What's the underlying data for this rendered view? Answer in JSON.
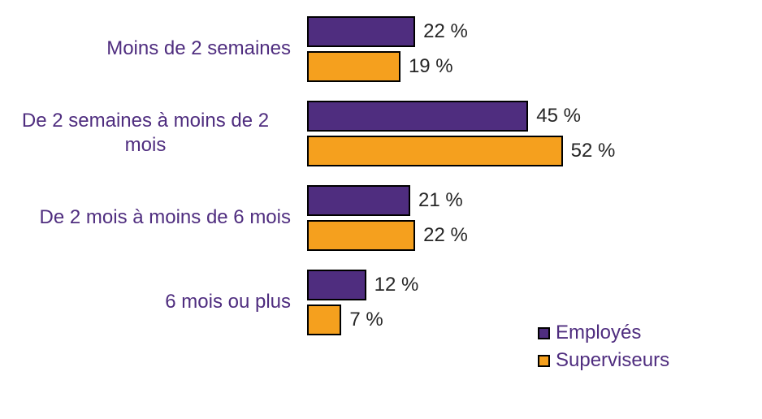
{
  "chart_data": {
    "type": "bar",
    "orientation": "horizontal",
    "title": "",
    "xlabel": "",
    "ylabel": "",
    "xlim": [
      0,
      60
    ],
    "grid": false,
    "legend_position": "bottom-right",
    "value_suffix": " %",
    "categories": [
      "Moins de 2 semaines",
      "De 2 semaines à moins de 2 mois",
      "De 2 mois à moins de 6 mois",
      "6 mois ou plus"
    ],
    "series": [
      {
        "name": "Employés",
        "color": "#4F2D7F",
        "values": [
          22,
          45,
          21,
          12
        ]
      },
      {
        "name": "Superviseurs",
        "color": "#F5A01E",
        "values": [
          19,
          52,
          22,
          7
        ]
      }
    ],
    "colors": {
      "category_label": "#4F2D7F",
      "value_label": "#262626",
      "bar_border": "#000000",
      "legend_text": "#4F2D7F",
      "background": "#FFFFFF"
    }
  }
}
